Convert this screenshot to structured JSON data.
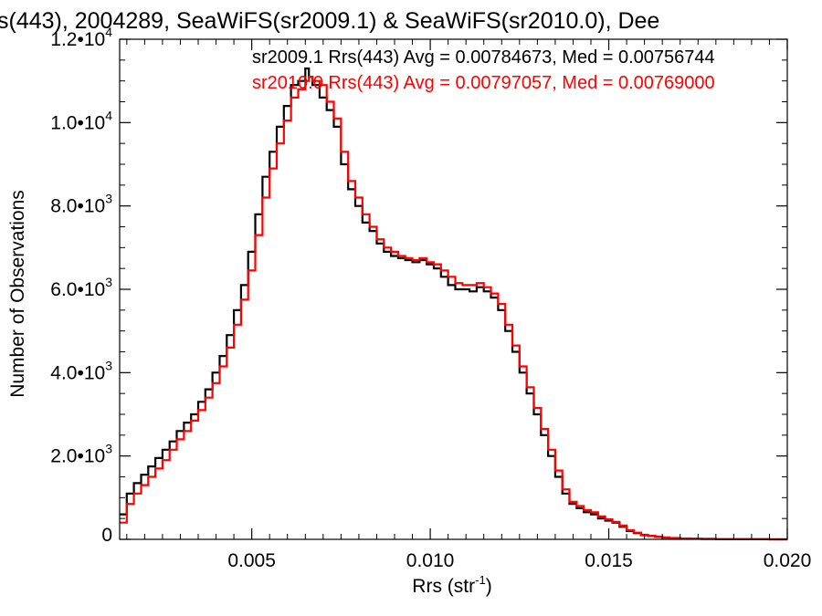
{
  "chart_data": {
    "type": "line",
    "title": "s(443), 2004289, SeaWiFS(sr2009.1) & SeaWiFS(sr2010.0), Dee",
    "xlabel": "Rrs (str",
    "xlabel_sup": "-1",
    "xlabel_close": ")",
    "ylabel": "Number of Observations",
    "xlim": [
      0.0013,
      0.02
    ],
    "ylim": [
      0,
      12000
    ],
    "x_ticks": [
      {
        "value": 0.005,
        "label": "0.005"
      },
      {
        "value": 0.01,
        "label": "0.010"
      },
      {
        "value": 0.015,
        "label": "0.015"
      },
      {
        "value": 0.02,
        "label": "0.020"
      }
    ],
    "y_ticks": [
      {
        "value": 0,
        "mant": "0",
        "exp": ""
      },
      {
        "value": 2000,
        "mant": "2.0•10",
        "exp": "3"
      },
      {
        "value": 4000,
        "mant": "4.0•10",
        "exp": "3"
      },
      {
        "value": 6000,
        "mant": "6.0•10",
        "exp": "3"
      },
      {
        "value": 8000,
        "mant": "8.0•10",
        "exp": "3"
      },
      {
        "value": 10000,
        "mant": "1.0•10",
        "exp": "4"
      },
      {
        "value": 12000,
        "mant": "1.2•10",
        "exp": "4"
      }
    ],
    "legend": [
      {
        "text": "sr2009.1 Rrs(443) Avg = 0.00784673, Med = 0.00756744",
        "color": "#000000"
      },
      {
        "text": "sr2010.0 Rrs(443) Avg = 0.00797057, Med = 0.00769000",
        "color": "#ff0000"
      }
    ],
    "legend_placement": "top-right",
    "grid": false,
    "series": [
      {
        "name": "sr2009.1",
        "color": "#000000",
        "x": [
          0.0013,
          0.0015,
          0.0017,
          0.0019,
          0.0021,
          0.0023,
          0.0025,
          0.0027,
          0.0029,
          0.0031,
          0.0033,
          0.0035,
          0.0037,
          0.0039,
          0.0041,
          0.0043,
          0.0045,
          0.0047,
          0.0049,
          0.0051,
          0.0053,
          0.0055,
          0.0057,
          0.0059,
          0.0061,
          0.0063,
          0.0065,
          0.0066,
          0.0067,
          0.0069,
          0.0071,
          0.0073,
          0.0075,
          0.0077,
          0.0079,
          0.0081,
          0.0083,
          0.0085,
          0.0087,
          0.0089,
          0.0091,
          0.0093,
          0.0095,
          0.0097,
          0.0099,
          0.0101,
          0.0103,
          0.0105,
          0.0107,
          0.0109,
          0.0111,
          0.0113,
          0.0115,
          0.0117,
          0.0119,
          0.0121,
          0.0123,
          0.0125,
          0.0127,
          0.0129,
          0.0131,
          0.0133,
          0.0135,
          0.0137,
          0.0139,
          0.0141,
          0.0143,
          0.0145,
          0.0147,
          0.0149,
          0.0151,
          0.0153,
          0.0155,
          0.0157,
          0.0159,
          0.0161,
          0.0163,
          0.0165,
          0.0167,
          0.017,
          0.0173,
          0.0176,
          0.018,
          0.0185,
          0.019,
          0.0195,
          0.02
        ],
        "values": [
          600,
          1100,
          1350,
          1550,
          1750,
          1950,
          2150,
          2350,
          2600,
          2800,
          3000,
          3300,
          3600,
          4000,
          4400,
          4900,
          5500,
          6100,
          6900,
          7800,
          8700,
          9300,
          9900,
          10400,
          10900,
          11000,
          11300,
          11100,
          10900,
          10600,
          10300,
          9900,
          9000,
          8400,
          8000,
          7600,
          7400,
          7100,
          6900,
          6800,
          6750,
          6700,
          6650,
          6700,
          6600,
          6500,
          6300,
          6100,
          6000,
          6000,
          5950,
          6050,
          5950,
          5800,
          5500,
          5000,
          4500,
          4000,
          3500,
          3000,
          2500,
          2000,
          1500,
          1100,
          850,
          750,
          650,
          600,
          500,
          450,
          400,
          300,
          200,
          150,
          100,
          80,
          60,
          40,
          30,
          20,
          15,
          10,
          5,
          3,
          2,
          1,
          0
        ]
      },
      {
        "name": "sr2010.0",
        "color": "#ff0000",
        "x": [
          0.0013,
          0.0015,
          0.0017,
          0.0019,
          0.0021,
          0.0023,
          0.0025,
          0.0027,
          0.0029,
          0.0031,
          0.0033,
          0.0035,
          0.0037,
          0.0039,
          0.0041,
          0.0043,
          0.0045,
          0.0047,
          0.0049,
          0.0051,
          0.0053,
          0.0055,
          0.0057,
          0.0059,
          0.0061,
          0.0063,
          0.0065,
          0.0066,
          0.0067,
          0.0069,
          0.0071,
          0.0073,
          0.0075,
          0.0077,
          0.0079,
          0.0081,
          0.0083,
          0.0085,
          0.0087,
          0.0089,
          0.0091,
          0.0093,
          0.0095,
          0.0097,
          0.0099,
          0.0101,
          0.0103,
          0.0105,
          0.0107,
          0.0109,
          0.0111,
          0.0113,
          0.0115,
          0.0117,
          0.0119,
          0.0121,
          0.0123,
          0.0125,
          0.0127,
          0.0129,
          0.0131,
          0.0133,
          0.0135,
          0.0137,
          0.0139,
          0.0141,
          0.0143,
          0.0145,
          0.0147,
          0.0149,
          0.0151,
          0.0153,
          0.0155,
          0.0157,
          0.0159,
          0.0161,
          0.0163,
          0.0165,
          0.0167,
          0.017,
          0.0173,
          0.0176,
          0.018,
          0.0185,
          0.019,
          0.0195,
          0.02
        ],
        "values": [
          400,
          850,
          1100,
          1300,
          1500,
          1700,
          1900,
          2150,
          2400,
          2600,
          2850,
          3100,
          3400,
          3750,
          4150,
          4600,
          5150,
          5750,
          6450,
          7300,
          8200,
          8900,
          9500,
          10050,
          10600,
          10800,
          11000,
          11100,
          11000,
          10900,
          10500,
          10100,
          9300,
          8600,
          8200,
          7800,
          7500,
          7200,
          7000,
          6900,
          6800,
          6750,
          6700,
          6750,
          6650,
          6600,
          6450,
          6300,
          6150,
          6100,
          6100,
          6150,
          6050,
          5900,
          5650,
          5150,
          4650,
          4150,
          3650,
          3150,
          2650,
          2150,
          1650,
          1200,
          900,
          800,
          700,
          650,
          550,
          480,
          420,
          330,
          220,
          160,
          110,
          85,
          65,
          45,
          32,
          22,
          15,
          10,
          5,
          3,
          2,
          1,
          0
        ]
      }
    ]
  }
}
